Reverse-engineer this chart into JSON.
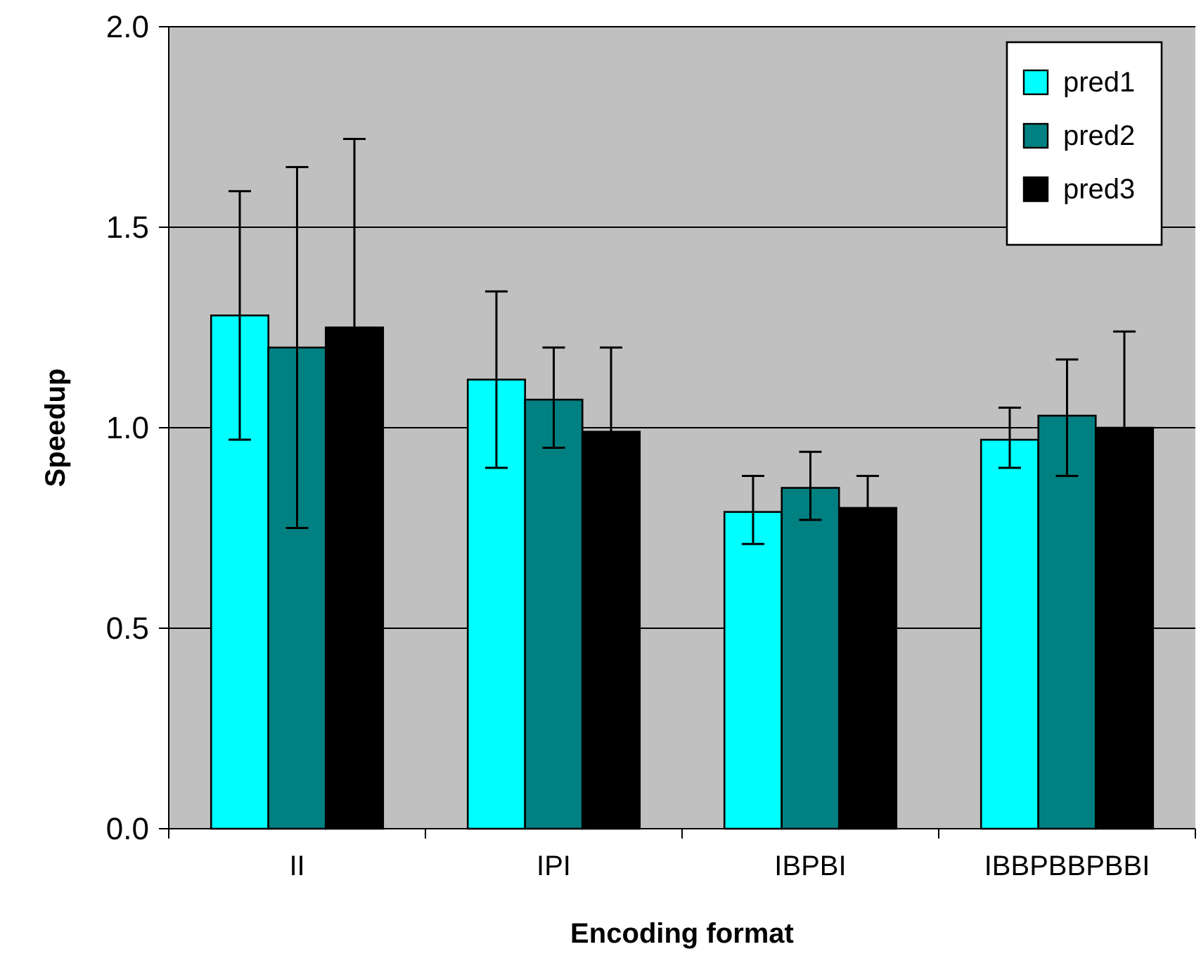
{
  "chart_data": {
    "type": "bar",
    "xlabel": "Encoding format",
    "ylabel": "Speedup",
    "categories": [
      "II",
      "IPI",
      "IBPBI",
      "IBBPBBPBBI"
    ],
    "series": [
      {
        "name": "pred1",
        "color": "#00ffff",
        "values": [
          1.28,
          1.12,
          0.79,
          0.97
        ],
        "errors": [
          [
            0.97,
            1.59
          ],
          [
            0.9,
            1.34
          ],
          [
            0.71,
            0.88
          ],
          [
            0.9,
            1.05
          ]
        ]
      },
      {
        "name": "pred2",
        "color": "#008080",
        "values": [
          1.2,
          1.07,
          0.85,
          1.03
        ],
        "errors": [
          [
            0.75,
            1.65
          ],
          [
            0.95,
            1.2
          ],
          [
            0.77,
            0.94
          ],
          [
            0.88,
            1.17
          ]
        ]
      },
      {
        "name": "pred3",
        "color": "#000000",
        "values": [
          1.25,
          0.99,
          0.8,
          1.0
        ],
        "errors": [
          0.47,
          0.21,
          0.08,
          0.24
        ]
      }
    ],
    "ylim": [
      0,
      2
    ],
    "yticks": [
      {
        "value": 0,
        "label": "0.0"
      },
      0.5,
      {
        "value": 1,
        "label": "1.0"
      },
      1.5,
      {
        "value": 2,
        "label": "2.0"
      }
    ],
    "grid": "y",
    "legend": "top right"
  }
}
